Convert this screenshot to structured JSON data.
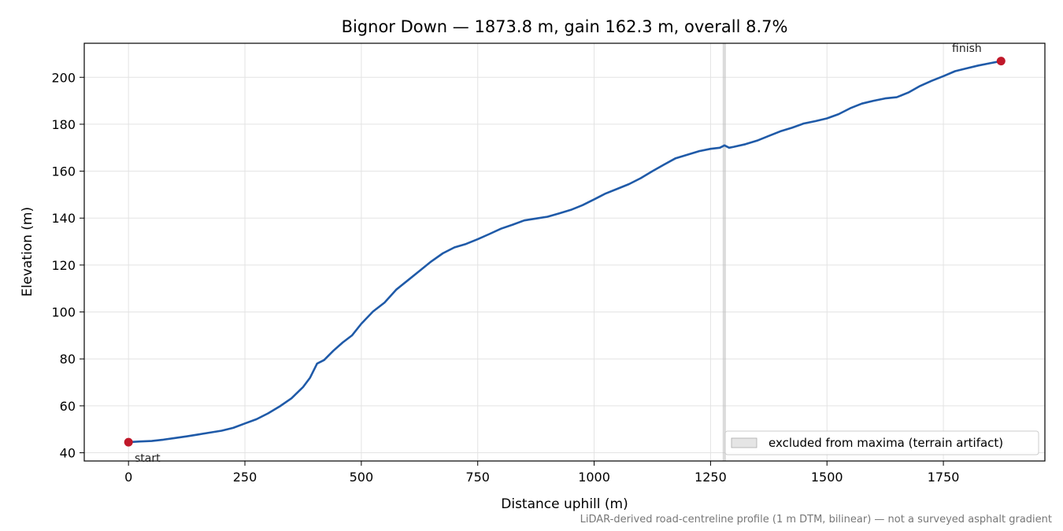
{
  "chart_data": {
    "type": "line",
    "title": "Bignor Down — 1873.8 m, gain 162.3 m, overall 8.7%",
    "xlabel": "Distance uphill (m)",
    "ylabel": "Elevation (m)",
    "xlim": [
      -95,
      1968
    ],
    "ylim": [
      36.5,
      214.5
    ],
    "xticks": [
      0,
      250,
      500,
      750,
      1000,
      1250,
      1500,
      1750
    ],
    "yticks": [
      40,
      60,
      80,
      100,
      120,
      140,
      160,
      180,
      200
    ],
    "grid": true,
    "legend_position": "lower-right",
    "line_color": "#1f5aa8",
    "marker_color": "#c0182a",
    "series": [
      {
        "values_x": [
          0,
          25,
          50,
          75,
          100,
          125,
          150,
          175,
          200,
          225,
          250,
          275,
          300,
          325,
          350,
          375,
          390,
          405,
          420,
          440,
          460,
          480,
          500,
          525,
          550,
          575,
          600,
          625,
          650,
          675,
          700,
          725,
          750,
          775,
          800,
          825,
          850,
          875,
          900,
          925,
          950,
          975,
          1000,
          1025,
          1050,
          1075,
          1100,
          1125,
          1150,
          1175,
          1200,
          1225,
          1250,
          1270,
          1280,
          1290,
          1300,
          1325,
          1350,
          1375,
          1400,
          1425,
          1450,
          1475,
          1500,
          1525,
          1550,
          1575,
          1600,
          1625,
          1650,
          1675,
          1700,
          1725,
          1750,
          1775,
          1800,
          1825,
          1850,
          1873.8
        ],
        "values_y": [
          44.5,
          44.8,
          45.0,
          45.6,
          46.3,
          47.0,
          47.8,
          48.6,
          49.4,
          50.6,
          52.5,
          54.3,
          56.8,
          59.8,
          63.2,
          68.0,
          72.0,
          78.0,
          79.5,
          83.5,
          87.0,
          90.0,
          95.0,
          100.2,
          104.0,
          109.5,
          113.5,
          117.5,
          121.5,
          125.0,
          127.5,
          129.0,
          131.0,
          133.2,
          135.5,
          137.2,
          139.0,
          139.8,
          140.6,
          142.0,
          143.5,
          145.5,
          148.0,
          150.5,
          152.5,
          154.5,
          157.0,
          160.0,
          162.8,
          165.5,
          167.0,
          168.5,
          169.5,
          170.0,
          171.0,
          170.0,
          170.4,
          171.5,
          173.0,
          175.0,
          177.0,
          178.5,
          180.3,
          181.3,
          182.5,
          184.3,
          186.8,
          188.8,
          190.0,
          191.0,
          191.5,
          193.5,
          196.3,
          198.5,
          200.5,
          202.6,
          203.8,
          205.0,
          206.0,
          206.9
        ]
      }
    ],
    "annotations": {
      "start_label": "start",
      "finish_label": "finish",
      "start_point": {
        "x": 0,
        "y": 44.5
      },
      "finish_point": {
        "x": 1873.8,
        "y": 206.9
      }
    },
    "excluded_band": {
      "x_start": 1276,
      "x_end": 1283,
      "label": "excluded from maxima (terrain artifact)",
      "color": "#bdbdbd"
    }
  },
  "footnote": "LiDAR-derived road-centreline profile (1 m DTM, bilinear) — not a surveyed asphalt gradient"
}
